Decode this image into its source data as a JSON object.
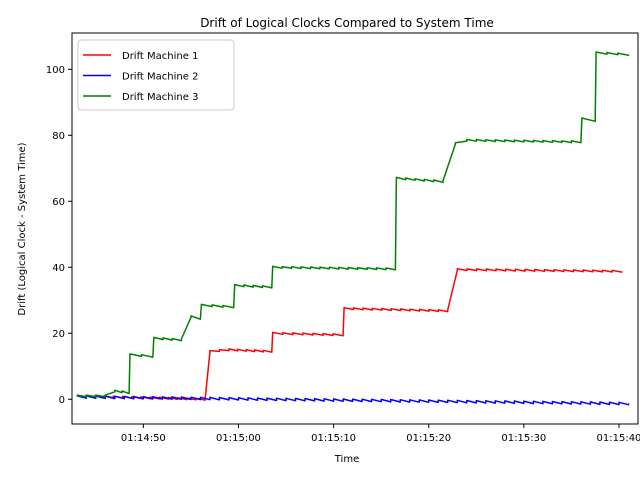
{
  "chart_data": {
    "type": "line",
    "title": "Drift of Logical Clocks Compared to System Time",
    "xlabel": "Time",
    "ylabel": "Drift (Logical Clock - System Time)",
    "x_unit": "seconds past 01:14:00",
    "xlim": [
      42.5,
      43.0
    ],
    "ylim": [
      -7.5,
      111
    ],
    "xticks": [
      50,
      60,
      70,
      80,
      90,
      100
    ],
    "xtick_labels": [
      "01:14:50",
      "01:15:00",
      "01:15:10",
      "01:15:20",
      "01:15:30",
      "01:15:40"
    ],
    "yticks": [
      0,
      20,
      40,
      60,
      80,
      100
    ],
    "ytick_labels": [
      "0",
      "20",
      "40",
      "60",
      "80",
      "100"
    ],
    "grid": false,
    "legend_position": "top-left",
    "series": [
      {
        "name": "Drift Machine 1",
        "color": "#ff0000",
        "steps": [
          {
            "x": 43.0,
            "y": 1.0
          },
          {
            "x": 56.5,
            "y": 0.0
          },
          {
            "x": 57.0,
            "y": 14.5
          },
          {
            "x": 59.0,
            "y": 15.0
          },
          {
            "x": 63.5,
            "y": 14.5
          },
          {
            "x": 63.6,
            "y": 20.0
          },
          {
            "x": 71.0,
            "y": 19.5
          },
          {
            "x": 71.1,
            "y": 27.5
          },
          {
            "x": 82.0,
            "y": 26.8
          },
          {
            "x": 83.0,
            "y": 39.3
          },
          {
            "x": 100.3,
            "y": 38.8
          }
        ],
        "sawtooth": 0.5
      },
      {
        "name": "Drift Machine 2",
        "color": "#0000ff",
        "steps": [
          {
            "x": 43.0,
            "y": 0.7
          },
          {
            "x": 101.0,
            "y": -1.3
          }
        ],
        "sawtooth": 0.7
      },
      {
        "name": "Drift Machine 3",
        "color": "#008000",
        "steps": [
          {
            "x": 43.0,
            "y": 1.0
          },
          {
            "x": 46.0,
            "y": 1.0
          },
          {
            "x": 47.0,
            "y": 2.5
          },
          {
            "x": 48.5,
            "y": 2.0
          },
          {
            "x": 48.6,
            "y": 13.5
          },
          {
            "x": 51.0,
            "y": 13.0
          },
          {
            "x": 51.1,
            "y": 18.5
          },
          {
            "x": 54.0,
            "y": 18.0
          },
          {
            "x": 55.0,
            "y": 25.0
          },
          {
            "x": 56.0,
            "y": 24.5
          },
          {
            "x": 56.1,
            "y": 28.5
          },
          {
            "x": 59.5,
            "y": 28.0
          },
          {
            "x": 59.6,
            "y": 34.5
          },
          {
            "x": 63.5,
            "y": 34.0
          },
          {
            "x": 63.6,
            "y": 40.0
          },
          {
            "x": 76.5,
            "y": 39.5
          },
          {
            "x": 76.6,
            "y": 67.0
          },
          {
            "x": 81.5,
            "y": 66.0
          },
          {
            "x": 82.8,
            "y": 77.5
          },
          {
            "x": 84.0,
            "y": 78.5
          },
          {
            "x": 96.0,
            "y": 78.0
          },
          {
            "x": 96.1,
            "y": 85.0
          },
          {
            "x": 97.5,
            "y": 84.5
          },
          {
            "x": 97.6,
            "y": 105.0
          },
          {
            "x": 101.0,
            "y": 104.5
          }
        ],
        "sawtooth": 0.5
      }
    ]
  }
}
